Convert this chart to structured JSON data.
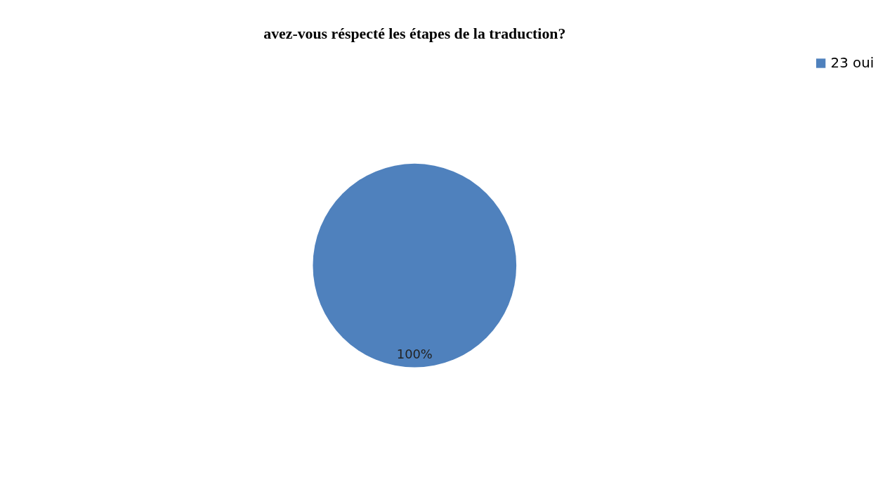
{
  "chart_data": {
    "type": "pie",
    "title": "avez-vous réspecté les étapes de la traduction?",
    "categories": [
      "23 oui"
    ],
    "values": [
      100
    ],
    "colors": [
      "#4f81bd"
    ],
    "value_labels": [
      "100%"
    ],
    "legend": "right"
  }
}
